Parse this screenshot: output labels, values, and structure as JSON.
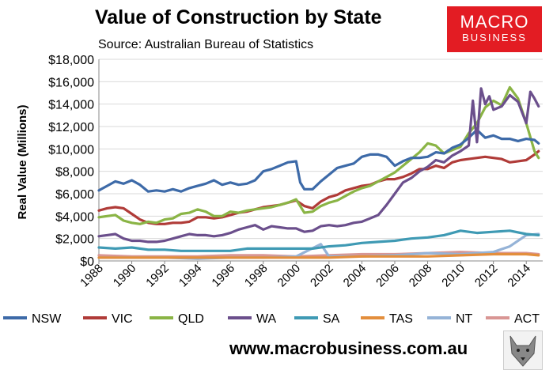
{
  "header": {
    "title": "Value of Construction by State",
    "subtitle": "Source: Australian Bureau of Statistics"
  },
  "logo": {
    "line1": "MACRO",
    "line2": "BUSINESS"
  },
  "footer": {
    "website": "www.macrobusiness.com.au"
  },
  "mascot_icon": "wolf-icon",
  "chart_data": {
    "type": "line",
    "title": "Value of Construction by State",
    "ylabel": "Real Value (Millions)",
    "xlabel": "",
    "ylim": [
      0,
      18000
    ],
    "xlim": [
      1988,
      2015
    ],
    "grid": true,
    "legend_position": "bottom",
    "y_ticks": [
      0,
      2000,
      4000,
      6000,
      8000,
      10000,
      12000,
      14000,
      16000,
      18000
    ],
    "y_tick_labels": [
      "$0",
      "$2,000",
      "$4,000",
      "$6,000",
      "$8,000",
      "$10,000",
      "$12,000",
      "$14,000",
      "$16,000",
      "$18,000"
    ],
    "x_ticks": [
      1988,
      1990,
      1992,
      1994,
      1996,
      1998,
      2000,
      2002,
      2004,
      2006,
      2008,
      2010,
      2012,
      2014
    ],
    "x_tick_labels": [
      "1988",
      "1990",
      "1992",
      "1994",
      "1996",
      "1998",
      "2000",
      "2002",
      "2004",
      "2006",
      "2008",
      "2010",
      "2012",
      "2014"
    ],
    "series": [
      {
        "name": "NSW",
        "color": "#3d6aa8",
        "x": [
          1988,
          1988.5,
          1989,
          1989.5,
          1990,
          1990.5,
          1991,
          1991.5,
          1992,
          1992.5,
          1993,
          1993.5,
          1994,
          1994.5,
          1995,
          1995.5,
          1996,
          1996.5,
          1997,
          1997.5,
          1998,
          1998.5,
          1999,
          1999.5,
          2000,
          2000.25,
          2000.5,
          2001,
          2001.5,
          2002,
          2002.5,
          2003,
          2003.5,
          2004,
          2004.5,
          2005,
          2005.5,
          2006,
          2006.5,
          2007,
          2007.5,
          2008,
          2008.5,
          2009,
          2009.5,
          2010,
          2010.5,
          2011,
          2011.5,
          2012,
          2012.5,
          2013,
          2013.5,
          2014,
          2014.5,
          2014.75
        ],
        "y": [
          6300,
          6700,
          7100,
          6900,
          7200,
          6800,
          6200,
          6300,
          6200,
          6400,
          6200,
          6500,
          6700,
          6900,
          7200,
          6800,
          7000,
          6800,
          6900,
          7200,
          8000,
          8200,
          8500,
          8800,
          8900,
          7000,
          6400,
          6400,
          7100,
          7700,
          8300,
          8500,
          8700,
          9300,
          9500,
          9500,
          9300,
          8500,
          8900,
          9200,
          9200,
          9300,
          9700,
          9600,
          10100,
          10400,
          11000,
          11700,
          11000,
          11200,
          10900,
          10900,
          10700,
          10900,
          10800,
          10500
        ]
      },
      {
        "name": "VIC",
        "color": "#b03b38",
        "x": [
          1988,
          1988.5,
          1989,
          1989.5,
          1990,
          1990.5,
          1991,
          1991.5,
          1992,
          1992.5,
          1993,
          1993.5,
          1994,
          1994.5,
          1995,
          1995.5,
          1996,
          1996.5,
          1997,
          1997.5,
          1998,
          1998.5,
          1999,
          1999.5,
          2000,
          2000.5,
          2001,
          2001.5,
          2002,
          2002.5,
          2003,
          2003.5,
          2004,
          2004.5,
          2005,
          2005.5,
          2006,
          2006.5,
          2007,
          2007.5,
          2008,
          2008.5,
          2009,
          2009.5,
          2010,
          2010.5,
          2011,
          2011.5,
          2012,
          2012.5,
          2013,
          2013.5,
          2014,
          2014.5,
          2014.75
        ],
        "y": [
          4500,
          4700,
          4800,
          4700,
          4200,
          3700,
          3400,
          3300,
          3300,
          3400,
          3400,
          3500,
          3900,
          3900,
          3800,
          3900,
          4100,
          4300,
          4400,
          4600,
          4800,
          4900,
          5000,
          5200,
          5400,
          4900,
          4700,
          5300,
          5700,
          5900,
          6300,
          6500,
          6700,
          6800,
          7100,
          7300,
          7300,
          7500,
          7800,
          8200,
          8200,
          8500,
          8300,
          8800,
          9000,
          9100,
          9200,
          9300,
          9200,
          9100,
          8800,
          8900,
          9000,
          9500,
          9800
        ]
      },
      {
        "name": "QLD",
        "color": "#8ab445",
        "x": [
          1988,
          1988.5,
          1989,
          1989.5,
          1990,
          1990.5,
          1991,
          1991.5,
          1992,
          1992.5,
          1993,
          1993.5,
          1994,
          1994.5,
          1995,
          1995.5,
          1996,
          1996.5,
          1997,
          1997.5,
          1998,
          1998.5,
          1999,
          1999.5,
          2000,
          2000.5,
          2001,
          2001.5,
          2002,
          2002.5,
          2003,
          2003.5,
          2004,
          2004.5,
          2005,
          2005.5,
          2006,
          2006.5,
          2007,
          2007.5,
          2008,
          2008.5,
          2009,
          2009.5,
          2010,
          2010.5,
          2011,
          2011.5,
          2012,
          2012.5,
          2013,
          2013.5,
          2014,
          2014.5,
          2014.75
        ],
        "y": [
          3900,
          4000,
          4100,
          3600,
          3400,
          3300,
          3500,
          3400,
          3700,
          3800,
          4200,
          4300,
          4600,
          4400,
          4000,
          4000,
          4400,
          4300,
          4500,
          4600,
          4700,
          4800,
          5000,
          5200,
          5500,
          4300,
          4400,
          4900,
          5200,
          5400,
          5800,
          6200,
          6500,
          6700,
          7100,
          7500,
          7900,
          8500,
          9100,
          9700,
          10500,
          10300,
          9600,
          9900,
          10200,
          11400,
          12300,
          13700,
          14300,
          13900,
          15500,
          14500,
          12300,
          9800,
          9200
        ]
      },
      {
        "name": "WA",
        "color": "#6b4f8c",
        "x": [
          1988,
          1988.5,
          1989,
          1989.5,
          1990,
          1990.5,
          1991,
          1991.5,
          1992,
          1992.5,
          1993,
          1993.5,
          1994,
          1994.5,
          1995,
          1995.5,
          1996,
          1996.5,
          1997,
          1997.5,
          1998,
          1998.5,
          1999,
          1999.5,
          2000,
          2000.5,
          2001,
          2001.5,
          2002,
          2002.5,
          2003,
          2003.5,
          2004,
          2004.5,
          2005,
          2005.5,
          2006,
          2006.5,
          2007,
          2007.5,
          2008,
          2008.5,
          2009,
          2009.5,
          2010,
          2010.5,
          2010.75,
          2011,
          2011.25,
          2011.5,
          2011.75,
          2012,
          2012.5,
          2013,
          2013.5,
          2014,
          2014.25,
          2014.5,
          2014.75
        ],
        "y": [
          2200,
          2300,
          2400,
          2000,
          1800,
          1800,
          1700,
          1700,
          1800,
          2000,
          2200,
          2400,
          2300,
          2300,
          2200,
          2300,
          2500,
          2800,
          3000,
          3200,
          2800,
          3100,
          3000,
          2900,
          2900,
          2600,
          2700,
          3100,
          3200,
          3100,
          3200,
          3400,
          3500,
          3800,
          4100,
          5000,
          6000,
          7000,
          7400,
          8000,
          8400,
          9000,
          8800,
          9400,
          9800,
          10300,
          14300,
          10600,
          15400,
          14000,
          14700,
          13500,
          13800,
          14800,
          14200,
          12300,
          15100,
          14500,
          13800
        ]
      },
      {
        "name": "SA",
        "color": "#3f9ab4",
        "x": [
          1988,
          1989,
          1990,
          1991,
          1992,
          1993,
          1994,
          1995,
          1996,
          1997,
          1998,
          1999,
          2000,
          2001,
          2002,
          2003,
          2004,
          2005,
          2006,
          2007,
          2008,
          2009,
          2010,
          2011,
          2012,
          2013,
          2014,
          2014.75
        ],
        "y": [
          1200,
          1100,
          1200,
          1000,
          1000,
          900,
          900,
          900,
          900,
          1100,
          1100,
          1100,
          1100,
          1100,
          1300,
          1400,
          1600,
          1700,
          1800,
          2000,
          2100,
          2300,
          2700,
          2500,
          2600,
          2700,
          2400,
          2300
        ]
      },
      {
        "name": "TAS",
        "color": "#e38e3c",
        "x": [
          1988,
          1990,
          1992,
          1994,
          1996,
          1998,
          2000,
          2002,
          2004,
          2006,
          2008,
          2010,
          2012,
          2014,
          2014.75
        ],
        "y": [
          300,
          300,
          300,
          300,
          300,
          300,
          300,
          300,
          400,
          400,
          400,
          500,
          600,
          600,
          500
        ]
      },
      {
        "name": "NT",
        "color": "#95b3d7",
        "x": [
          1988,
          1990,
          1992,
          1994,
          1996,
          1998,
          2000,
          2001.5,
          2002,
          2004,
          2006,
          2008,
          2010,
          2012,
          2013,
          2014,
          2014.75
        ],
        "y": [
          300,
          300,
          300,
          200,
          300,
          300,
          400,
          1500,
          400,
          400,
          500,
          700,
          600,
          800,
          1300,
          2300,
          2400
        ]
      },
      {
        "name": "ACT",
        "color": "#d99694",
        "x": [
          1988,
          1990,
          1992,
          1994,
          1996,
          1998,
          2000,
          2002,
          2004,
          2006,
          2008,
          2010,
          2012,
          2014,
          2014.75
        ],
        "y": [
          500,
          400,
          400,
          400,
          500,
          500,
          400,
          500,
          600,
          600,
          700,
          800,
          700,
          700,
          600
        ]
      }
    ]
  }
}
